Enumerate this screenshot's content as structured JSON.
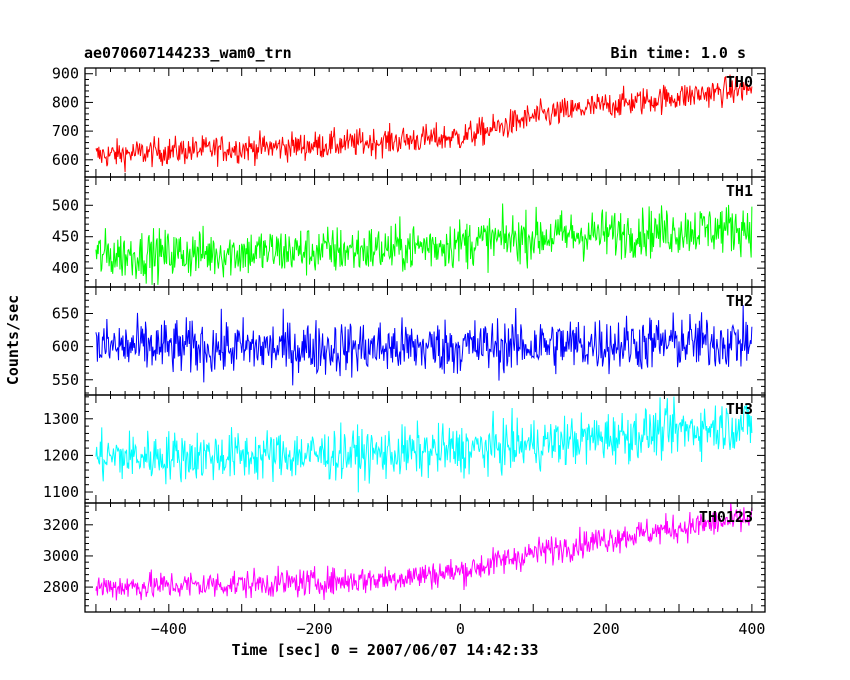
{
  "chart_data": {
    "type": "line",
    "title": "ae070607144233_wam0_trn",
    "subtitle": "Bin time: 1.0 s",
    "xlabel": "Time [sec] 0 = 2007/06/07 14:42:33",
    "ylabel": "Counts/sec",
    "xlim": [
      -515,
      418
    ],
    "x_range": [
      -500,
      400
    ],
    "bin_time": 1.0,
    "xticks": [
      -400,
      -200,
      0,
      200,
      400
    ],
    "x_tick_labels": [
      "−400",
      "−200",
      "0",
      "200",
      "400"
    ],
    "panels": [
      {
        "name": "TH0",
        "color": "#ff0000",
        "ylim": [
          540,
          920
        ],
        "yticks": [
          600,
          700,
          800,
          900
        ],
        "y_tick_labels": [
          "600",
          "700",
          "800",
          "900"
        ],
        "trend_x": [
          -500,
          -400,
          -300,
          -200,
          -100,
          0,
          50,
          100,
          200,
          300,
          400
        ],
        "trend_y": [
          615,
          630,
          640,
          650,
          665,
          680,
          710,
          750,
          790,
          820,
          850
        ],
        "noise": 35
      },
      {
        "name": "TH1",
        "color": "#00ff00",
        "ylim": [
          370,
          545
        ],
        "yticks": [
          400,
          450,
          500
        ],
        "y_tick_labels": [
          "400",
          "450",
          "500"
        ],
        "trend_x": [
          -500,
          -300,
          -100,
          0,
          100,
          200,
          300,
          400
        ],
        "trend_y": [
          420,
          425,
          430,
          440,
          450,
          455,
          460,
          465
        ],
        "noise": 28
      },
      {
        "name": "TH2",
        "color": "#0000ff",
        "ylim": [
          527,
          690
        ],
        "yticks": [
          550,
          600,
          650
        ],
        "y_tick_labels": [
          "550",
          "600",
          "650"
        ],
        "trend_x": [
          -500,
          -300,
          -100,
          0,
          100,
          200,
          300,
          400
        ],
        "trend_y": [
          600,
          598,
          598,
          600,
          602,
          604,
          606,
          608
        ],
        "noise": 30
      },
      {
        "name": "TH3",
        "color": "#00ffff",
        "ylim": [
          1070,
          1365
        ],
        "yticks": [
          1100,
          1200,
          1300
        ],
        "y_tick_labels": [
          "1100",
          "1200",
          "1300"
        ],
        "trend_x": [
          -500,
          -300,
          -100,
          0,
          100,
          200,
          300,
          400
        ],
        "trend_y": [
          1195,
          1200,
          1205,
          1215,
          1230,
          1250,
          1270,
          1285
        ],
        "noise": 50
      },
      {
        "name": "TH0123",
        "color": "#ff00ff",
        "ylim": [
          2640,
          3340
        ],
        "yticks": [
          2800,
          3000,
          3200
        ],
        "y_tick_labels": [
          "2800",
          "3000",
          "3200"
        ],
        "trend_x": [
          -500,
          -400,
          -300,
          -200,
          -100,
          0,
          100,
          200,
          300,
          400
        ],
        "trend_y": [
          2800,
          2810,
          2820,
          2830,
          2855,
          2900,
          3020,
          3110,
          3180,
          3240
        ],
        "noise": 65
      }
    ],
    "grid": false,
    "legend": "none"
  }
}
